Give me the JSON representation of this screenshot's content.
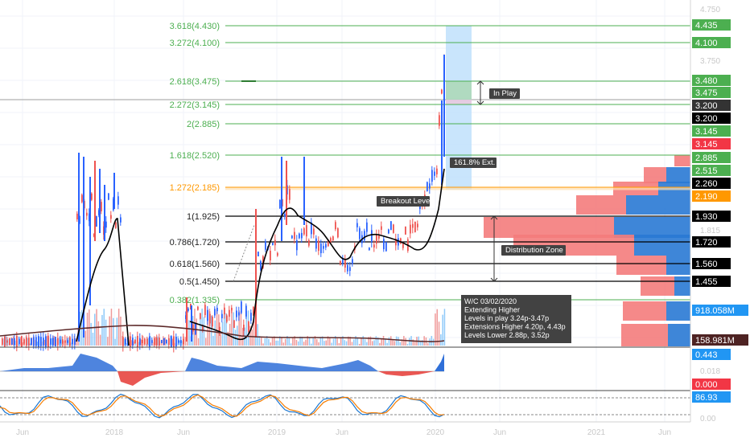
{
  "colors": {
    "fib": "#4caf50",
    "fib_dark": "#2e7d32",
    "fib_orange": "#ff9800",
    "black_line": "#000000",
    "up": "#2962ff",
    "down": "#ef5350",
    "price_red": "#f23645",
    "vp_blue": "#2979d4",
    "vp_red": "#f47c7c",
    "projection": "#bbdefb",
    "projection_green": "#a5d6a7",
    "osc_blue": "#2f6fd8",
    "osc_red": "#e53935",
    "stoch_orange": "#f57c00",
    "stoch_blue": "#1976d2"
  },
  "chart_data": {
    "type": "candlestick",
    "axis": {
      "price_ticks": [
        "4.750",
        "3.750",
        "1.815",
        "1.625",
        "0.018",
        "0.00"
      ],
      "time_ticks": [
        "Jun",
        "2018",
        "Jun",
        "2019",
        "Jun",
        "2020",
        "Jun",
        "2021",
        "Jun"
      ]
    },
    "fib_levels": [
      {
        "label": "3.618(4.430)",
        "value": 4.43
      },
      {
        "label": "3.272(4.100)",
        "value": 4.1
      },
      {
        "label": "2.618(3.475)",
        "value": 3.475
      },
      {
        "label": "2.272(3.145)",
        "value": 3.145
      },
      {
        "label": "2(2.885)",
        "value": 2.885
      },
      {
        "label": "1.618(2.520)",
        "value": 2.52
      },
      {
        "label": "1.272(2.185)",
        "value": 2.185,
        "orange": true
      },
      {
        "label": "1(1.925)",
        "value": 1.925,
        "black": true
      },
      {
        "label": "0.786(1.720)",
        "value": 1.72,
        "black": true
      },
      {
        "label": "0.618(1.560)",
        "value": 1.56,
        "black": true
      },
      {
        "label": "0.5(1.450)",
        "value": 1.45,
        "black": true
      },
      {
        "label": "0.382(1.335)",
        "value": 1.335
      }
    ],
    "price_labels": [
      {
        "text": "4.435",
        "kind": "green"
      },
      {
        "text": "4.100",
        "kind": "green"
      },
      {
        "text": "3.480",
        "kind": "green"
      },
      {
        "text": "3.475",
        "kind": "green"
      },
      {
        "text": "3.200",
        "kind": "dark"
      },
      {
        "text": "3.200",
        "kind": "black"
      },
      {
        "text": "3.145",
        "kind": "green"
      },
      {
        "text": "3.145",
        "kind": "red"
      },
      {
        "text": "2.885",
        "kind": "green"
      },
      {
        "text": "2.515",
        "kind": "green"
      },
      {
        "text": "2.260",
        "kind": "black"
      },
      {
        "text": "2.190",
        "kind": "orange"
      },
      {
        "text": "1.930",
        "kind": "black"
      },
      {
        "text": "1.720",
        "kind": "black"
      },
      {
        "text": "1.560",
        "kind": "black"
      },
      {
        "text": "1.455",
        "kind": "black"
      },
      {
        "text": "918.058M",
        "kind": "blue"
      },
      {
        "text": "158.981M",
        "kind": "brown"
      },
      {
        "text": "0.443",
        "kind": "blue"
      },
      {
        "text": "0.000",
        "kind": "red"
      },
      {
        "text": "86.93",
        "kind": "blue"
      }
    ],
    "annotations": [
      "In Play",
      "161.8% Ext.",
      "Breakout Level",
      "Distribution Zone"
    ],
    "note": {
      "lines": [
        "W/C 03/02/2020",
        "Extending Higher",
        "Levels in play 3.24p-3.47p",
        "Extensions Higher 4.20p, 4.43p",
        "Levels Lower 2.88p, 3.52p"
      ]
    }
  }
}
